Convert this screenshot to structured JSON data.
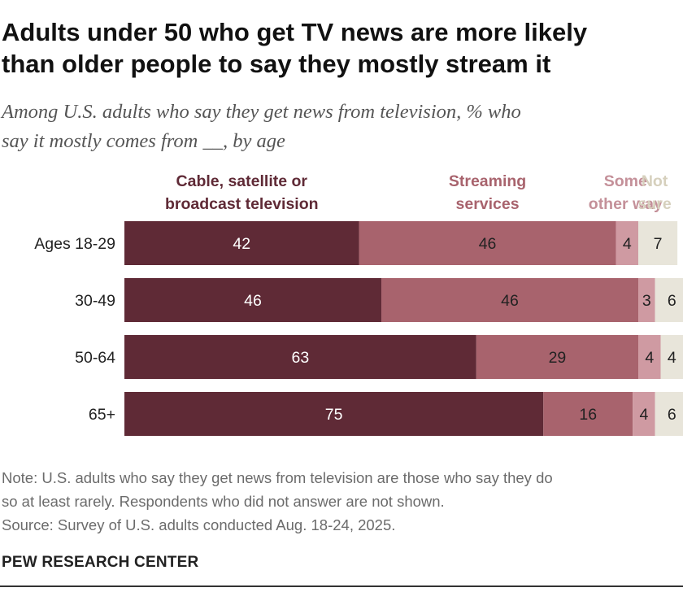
{
  "title_line1": "Adults under 50 who get TV news are more likely",
  "title_line2": "than older people to say they mostly stream it",
  "subtitle_line1": "Among U.S. adults who say they get news from television, % who",
  "subtitle_line2": "say it mostly comes from __, by age",
  "notes": {
    "note_line1": "Note: U.S. adults who say they get news from television are those who say they do",
    "note_line2": "so at least rarely. Respondents who did not answer are not shown.",
    "source": "Source: Survey of U.S. adults conducted Aug. 18-24, 2025."
  },
  "footer": "PEW RESEARCH CENTER",
  "chart_data": {
    "type": "bar",
    "orientation": "horizontal",
    "stacked": true,
    "categories": [
      "Ages 18-29",
      "30-49",
      "50-64",
      "65+"
    ],
    "series": [
      {
        "name": "Cable, satellite or broadcast television",
        "name_lines": [
          "Cable, satellite or",
          "broadcast television"
        ],
        "color": "#5f2a36",
        "label_color": "#ffffff",
        "legend_color": "#5f2a36",
        "values": [
          42,
          46,
          63,
          75
        ]
      },
      {
        "name": "Streaming services",
        "name_lines": [
          "Streaming",
          "services"
        ],
        "color": "#a8636d",
        "label_color": "#222222",
        "legend_color": "#a8636d",
        "values": [
          46,
          46,
          29,
          16
        ]
      },
      {
        "name": "Some other way",
        "name_lines": [
          "Some",
          "other way"
        ],
        "color": "#cf9aa2",
        "label_color": "#222222",
        "legend_color": "#c49099",
        "values": [
          4,
          3,
          4,
          4
        ]
      },
      {
        "name": "Not sure",
        "name_lines": [
          "Not",
          "sure"
        ],
        "color": "#e8e5da",
        "label_color": "#222222",
        "legend_color": "#d6d0bd",
        "values": [
          7,
          6,
          4,
          6
        ]
      }
    ],
    "xlim": [
      0,
      100
    ],
    "grid": false,
    "legend": "top"
  }
}
